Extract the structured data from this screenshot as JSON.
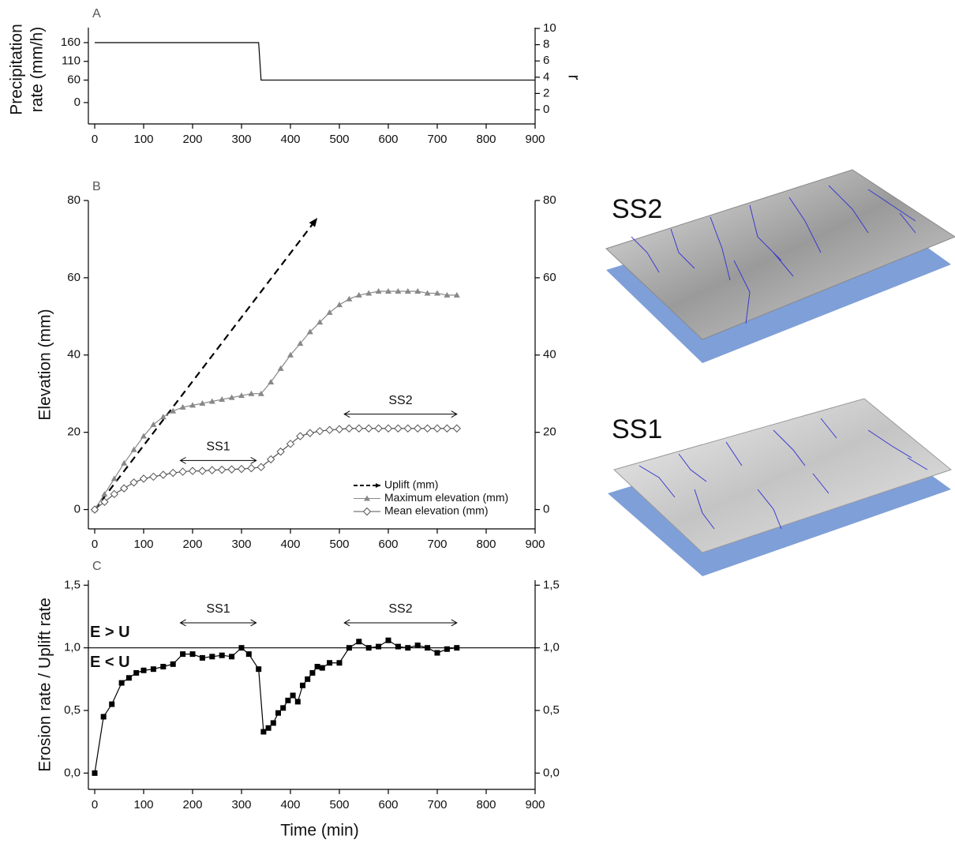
{
  "chart_data": [
    {
      "type": "line",
      "panel": "A",
      "ylabel": [
        "Precipitation",
        "rate (mm/h)"
      ],
      "y2label": "r",
      "x": [
        0,
        335,
        340,
        900
      ],
      "series": [
        {
          "color": "#000000",
          "values": [
            160,
            160,
            60,
            60
          ]
        }
      ],
      "xlim": [
        -13,
        900
      ],
      "xticks": [
        0,
        100,
        200,
        300,
        400,
        500,
        600,
        700,
        800,
        900
      ],
      "ylim": [
        -57,
        200
      ],
      "yticks": [
        0,
        60,
        110,
        160
      ],
      "y2lim": [
        -1.75,
        10.1
      ],
      "y2ticks": [
        0,
        2,
        4,
        6,
        8,
        10
      ]
    },
    {
      "type": "line",
      "panel": "B",
      "ylabel": "Elevation (mm)",
      "series": [
        {
          "name": "Uplift  (mm)",
          "color": "#000000",
          "dash": true,
          "arrow": true,
          "marker": null,
          "x": [
            0,
            455
          ],
          "values": [
            0,
            75.5
          ]
        },
        {
          "name": "Maximum elevation (mm)",
          "color": "#888888",
          "marker": "triangle",
          "x": [
            0,
            20,
            40,
            60,
            80,
            100,
            120,
            140,
            160,
            180,
            200,
            220,
            240,
            260,
            280,
            300,
            320,
            340,
            360,
            380,
            400,
            420,
            440,
            460,
            480,
            500,
            520,
            540,
            560,
            580,
            600,
            620,
            640,
            660,
            680,
            700,
            720,
            740
          ],
          "values": [
            0,
            4,
            8,
            12,
            15.5,
            19,
            22,
            24,
            25.5,
            26.5,
            27,
            27.5,
            28,
            28.5,
            29,
            29.5,
            30,
            30,
            33,
            36.5,
            40,
            43,
            46,
            48.5,
            51,
            53,
            54.5,
            55.5,
            56,
            56.5,
            56.5,
            56.5,
            56.5,
            56.5,
            56,
            56,
            55.5,
            55.5
          ]
        },
        {
          "name": "Mean elevation (mm)",
          "color": "#555555",
          "marker": "diamond",
          "x": [
            0,
            20,
            40,
            60,
            80,
            100,
            120,
            140,
            160,
            180,
            200,
            220,
            240,
            260,
            280,
            300,
            320,
            340,
            360,
            380,
            400,
            420,
            440,
            460,
            480,
            500,
            520,
            540,
            560,
            580,
            600,
            620,
            640,
            660,
            680,
            700,
            720,
            740
          ],
          "values": [
            0,
            2,
            4,
            5.5,
            7,
            8,
            8.5,
            9,
            9.5,
            9.8,
            10,
            10,
            10.2,
            10.3,
            10.4,
            10.5,
            10.7,
            11,
            13,
            15,
            17,
            19,
            19.8,
            20.3,
            20.6,
            20.8,
            21,
            21,
            21,
            21,
            21,
            21,
            21,
            21,
            21,
            21,
            21,
            21
          ]
        }
      ],
      "annotations": [
        {
          "text": "SS1",
          "x": [
            175,
            330
          ],
          "y": 12.7
        },
        {
          "text": "SS2",
          "x": [
            510,
            740
          ],
          "y": 24.7
        }
      ],
      "xlim": [
        -13,
        900
      ],
      "xticks": [
        0,
        100,
        200,
        300,
        400,
        500,
        600,
        700,
        800,
        900
      ],
      "ylim": [
        -5,
        80
      ],
      "yticks": [
        0,
        20,
        40,
        60,
        80
      ],
      "y2lim": [
        -5,
        80
      ],
      "y2ticks": [
        0,
        20,
        40,
        60,
        80
      ]
    },
    {
      "type": "line",
      "panel": "C",
      "ylabel": "Erosion rate / Uplift rate",
      "xlabel": "Time (min)",
      "series": [
        {
          "color": "#000000",
          "marker": "square",
          "x": [
            0,
            18,
            35,
            55,
            70,
            85,
            100,
            120,
            140,
            160,
            180,
            200,
            220,
            240,
            260,
            280,
            300,
            315,
            335,
            345,
            355,
            365,
            375,
            385,
            395,
            405,
            415,
            425,
            435,
            445,
            455,
            465,
            480,
            500,
            520,
            540,
            560,
            580,
            600,
            620,
            640,
            660,
            680,
            700,
            720,
            740
          ],
          "values": [
            0,
            0.45,
            0.55,
            0.72,
            0.76,
            0.8,
            0.82,
            0.83,
            0.85,
            0.87,
            0.95,
            0.95,
            0.92,
            0.93,
            0.94,
            0.93,
            1.0,
            0.95,
            0.83,
            0.33,
            0.36,
            0.4,
            0.48,
            0.52,
            0.58,
            0.62,
            0.57,
            0.7,
            0.75,
            0.8,
            0.85,
            0.84,
            0.88,
            0.88,
            1.0,
            1.05,
            1.0,
            1.01,
            1.06,
            1.01,
            1.0,
            1.02,
            1.0,
            0.96,
            0.99,
            1.0
          ]
        }
      ],
      "hline": 1.0,
      "texts": [
        "E > U",
        "E < U"
      ],
      "annotations": [
        {
          "text": "SS1",
          "x": [
            175,
            330
          ],
          "y": 1.2
        },
        {
          "text": "SS2",
          "x": [
            510,
            740
          ],
          "y": 1.2
        }
      ],
      "xlim": [
        -13,
        900
      ],
      "xticks": [
        0,
        100,
        200,
        300,
        400,
        500,
        600,
        700,
        800,
        900
      ],
      "ylim": [
        -0.13,
        1.54
      ],
      "yticks": [
        {
          "value": 0,
          "label": "0,0"
        },
        {
          "value": 0.5,
          "label": "0,5"
        },
        {
          "value": 1,
          "label": "1,0"
        },
        {
          "value": 1.5,
          "label": "1,5"
        }
      ],
      "y2lim": [
        -0.13,
        1.54
      ],
      "y2ticks": [
        {
          "value": 0,
          "label": "0,0"
        },
        {
          "value": 0.5,
          "label": "0,5"
        },
        {
          "value": 1,
          "label": "1,0"
        },
        {
          "value": 1.5,
          "label": "1,5"
        }
      ]
    }
  ],
  "images": [
    {
      "label": "SS2"
    },
    {
      "label": "SS1"
    }
  ]
}
